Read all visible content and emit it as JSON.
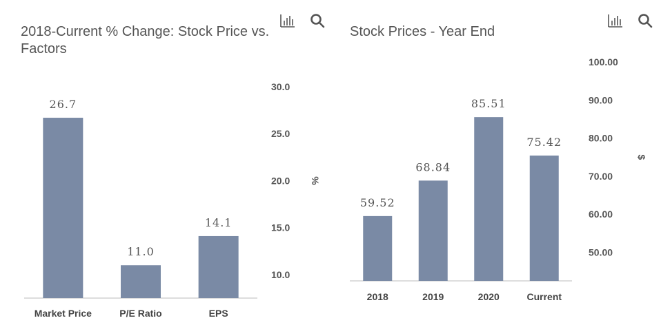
{
  "chart_data": [
    {
      "type": "bar",
      "title": "2018-Current % Change: Stock Price vs. Factors",
      "title_lines": [
        "2018-Current % Change: Stock Price vs.",
        "Factors"
      ],
      "categories": [
        "Market Price",
        "P/E Ratio",
        "EPS"
      ],
      "values": [
        26.7,
        11.0,
        14.1
      ],
      "data_labels": [
        "26.7",
        "11.0",
        "14.1"
      ],
      "ylabel": "%",
      "yticks": [
        "10.0",
        "15.0",
        "20.0",
        "25.0",
        "30.0"
      ],
      "ytick_values": [
        10,
        15,
        20,
        25,
        30
      ],
      "ylim": [
        7.5,
        30
      ],
      "y_axis_side": "right",
      "bar_color": "#7a8aa5",
      "grid": false,
      "legend": "none"
    },
    {
      "type": "bar",
      "title": "Stock Prices - Year End",
      "title_lines": [
        "Stock Prices - Year End"
      ],
      "categories": [
        "2018",
        "2019",
        "2020",
        "Current"
      ],
      "values": [
        59.52,
        68.84,
        85.51,
        75.42
      ],
      "data_labels": [
        "59.52",
        "68.84",
        "85.51",
        "75.42"
      ],
      "ylabel": "$",
      "yticks": [
        "50.00",
        "60.00",
        "70.00",
        "80.00",
        "90.00",
        "100.00"
      ],
      "ytick_values": [
        50,
        60,
        70,
        80,
        90,
        100
      ],
      "ylim": [
        42.5,
        100
      ],
      "y_axis_side": "right",
      "bar_color": "#7a8aa5",
      "grid": false,
      "legend": "none"
    }
  ],
  "toolbar": {
    "icons": [
      "bar-chart-icon",
      "search-icon"
    ],
    "icon_color": "#555555"
  }
}
